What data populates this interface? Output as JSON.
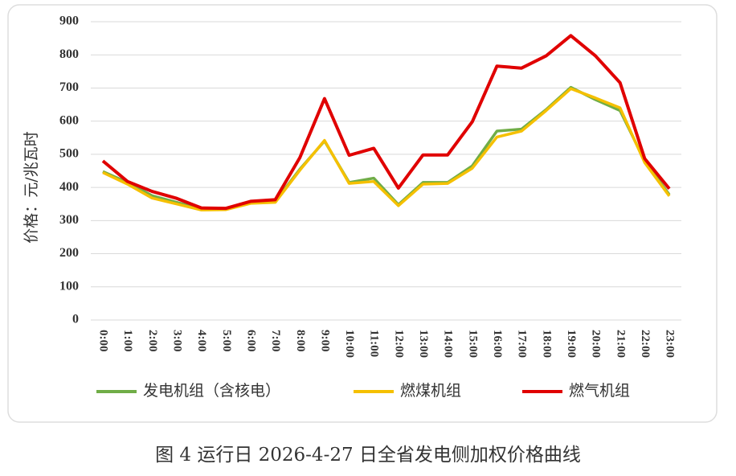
{
  "chart_data": {
    "type": "line",
    "title": "图 4 运行日 2026-4-27 日全省发电侧加权价格曲线",
    "y_label": "价格：元/兆瓦时",
    "categories": [
      "0:00",
      "1:00",
      "2:00",
      "3:00",
      "4:00",
      "5:00",
      "6:00",
      "7:00",
      "8:00",
      "9:00",
      "10:00",
      "11:00",
      "12:00",
      "13:00",
      "14:00",
      "15:00",
      "16:00",
      "17:00",
      "18:00",
      "19:00",
      "20:00",
      "21:00",
      "22:00",
      "23:00"
    ],
    "series": [
      {
        "name": "发电机组（含核电）",
        "color": "#70ad47",
        "values": [
          448,
          415,
          375,
          355,
          335,
          335,
          355,
          358,
          455,
          540,
          415,
          428,
          348,
          415,
          415,
          465,
          570,
          576,
          635,
          702,
          665,
          632,
          480,
          378
        ]
      },
      {
        "name": "燃煤机组",
        "color": "#f5c000",
        "values": [
          445,
          410,
          368,
          350,
          332,
          333,
          352,
          355,
          452,
          542,
          412,
          418,
          345,
          410,
          412,
          458,
          552,
          570,
          632,
          698,
          670,
          640,
          475,
          374
        ]
      },
      {
        "name": "燃气机组",
        "color": "#e00000",
        "values": [
          480,
          418,
          388,
          367,
          338,
          337,
          358,
          363,
          490,
          668,
          497,
          518,
          398,
          498,
          498,
          598,
          766,
          760,
          797,
          858,
          797,
          716,
          487,
          396
        ]
      }
    ],
    "ylim": [
      0,
      900
    ],
    "yticks": [
      0,
      100,
      200,
      300,
      400,
      500,
      600,
      700,
      800,
      900
    ],
    "grid": true,
    "legend": "bottom"
  }
}
